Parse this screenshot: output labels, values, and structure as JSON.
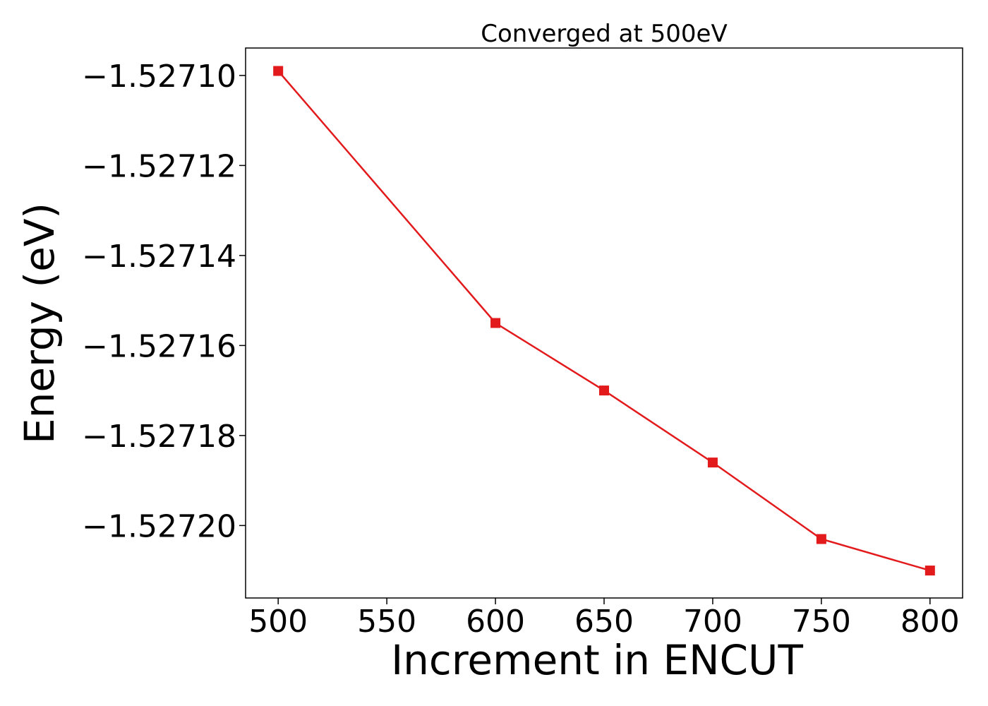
{
  "chart_data": {
    "type": "line",
    "title": "Converged at 500eV",
    "xlabel": "Increment in ENCUT",
    "ylabel": "Energy (eV)",
    "x": [
      500,
      600,
      650,
      700,
      750,
      800
    ],
    "series": [
      {
        "values": [
          -1.527099,
          -1.527155,
          -1.52717,
          -1.527186,
          -1.527203,
          -1.52721
        ],
        "color": "#e31a1c",
        "marker": "square"
      }
    ],
    "xlim": [
      485,
      815
    ],
    "ylim": [
      -1.5272161,
      -1.5270939
    ],
    "xticks": [
      500,
      550,
      600,
      650,
      700,
      750,
      800
    ],
    "yticks": [
      -1.5271,
      -1.52712,
      -1.52714,
      -1.52716,
      -1.52718,
      -1.5272
    ],
    "xtick_labels": [
      "500",
      "550",
      "600",
      "650",
      "700",
      "750",
      "800"
    ],
    "ytick_labels": [
      "−1.52710",
      "−1.52712",
      "−1.52714",
      "−1.52716",
      "−1.52718",
      "−1.52720"
    ],
    "grid": false,
    "legend": "none"
  }
}
